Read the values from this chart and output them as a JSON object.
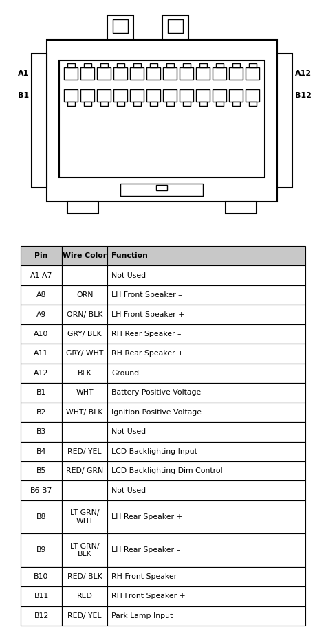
{
  "bg_color": "#ffffff",
  "table_rows": [
    [
      "Pin",
      "Wire Color",
      "Function"
    ],
    [
      "A1-A7",
      "—",
      "Not Used"
    ],
    [
      "A8",
      "ORN",
      "LH Front Speaker –"
    ],
    [
      "A9",
      "ORN/ BLK",
      "LH Front Speaker +"
    ],
    [
      "A10",
      "GRY/ BLK",
      "RH Rear Speaker –"
    ],
    [
      "A11",
      "GRY/ WHT",
      "RH Rear Speaker +"
    ],
    [
      "A12",
      "BLK",
      "Ground"
    ],
    [
      "B1",
      "WHT",
      "Battery Positive Voltage"
    ],
    [
      "B2",
      "WHT/ BLK",
      "Ignition Positive Voltage"
    ],
    [
      "B3",
      "—",
      "Not Used"
    ],
    [
      "B4",
      "RED/ YEL",
      "LCD Backlighting Input"
    ],
    [
      "B5",
      "RED/ GRN",
      "LCD Backlighting Dim Control"
    ],
    [
      "B6-B7",
      "—",
      "Not Used"
    ],
    [
      "B8",
      "LT GRN/\nWHT",
      "LH Rear Speaker +"
    ],
    [
      "B9",
      "LT GRN/\nBLK",
      "LH Rear Speaker –"
    ],
    [
      "B10",
      "RED/ BLK",
      "RH Front Speaker –"
    ],
    [
      "B11",
      "RED",
      "RH Front Speaker +"
    ],
    [
      "B12",
      "RED/ YEL",
      "Park Lamp Input"
    ]
  ],
  "header_bg": "#c8c8c8",
  "row_bg": "#ffffff",
  "line_color": "#000000",
  "text_color": "#000000",
  "tall_row_indices": [
    13,
    14
  ],
  "tall_row_factor": 1.7
}
